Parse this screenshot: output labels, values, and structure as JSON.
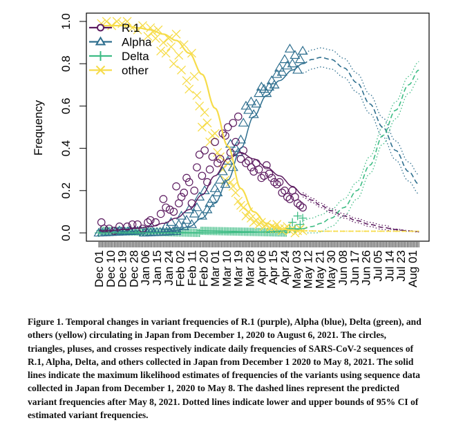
{
  "chart_data": {
    "type": "line",
    "title": "",
    "xlabel": "",
    "ylabel": "Frequency",
    "ylim": [
      0,
      1
    ],
    "y_ticks": [
      "0.0",
      "0.2",
      "0.4",
      "0.6",
      "0.8",
      "1.0"
    ],
    "x_start_date": "Dec 01 2020",
    "x_end_date": "Aug 06 2021",
    "x_days_range": [
      0,
      248
    ],
    "x_ticks": [
      {
        "label": "Dec 01",
        "day": 0
      },
      {
        "label": "Dec 10",
        "day": 9
      },
      {
        "label": "Dec 19",
        "day": 18
      },
      {
        "label": "Dec 28",
        "day": 27
      },
      {
        "label": "Jan 06",
        "day": 36
      },
      {
        "label": "Jan 15",
        "day": 45
      },
      {
        "label": "Jan 24",
        "day": 54
      },
      {
        "label": "Feb 02",
        "day": 63
      },
      {
        "label": "Feb 11",
        "day": 72
      },
      {
        "label": "Feb 20",
        "day": 81
      },
      {
        "label": "Mar 01",
        "day": 90
      },
      {
        "label": "Mar 10",
        "day": 99
      },
      {
        "label": "Mar 19",
        "day": 108
      },
      {
        "label": "Mar 28",
        "day": 117
      },
      {
        "label": "Apr 06",
        "day": 126
      },
      {
        "label": "Apr 15",
        "day": 135
      },
      {
        "label": "Apr 24",
        "day": 144
      },
      {
        "label": "May 03",
        "day": 153
      },
      {
        "label": "May 12",
        "day": 162
      },
      {
        "label": "May 21",
        "day": 171
      },
      {
        "label": "May 30",
        "day": 180
      },
      {
        "label": "Jun 08",
        "day": 189
      },
      {
        "label": "Jun 17",
        "day": 198
      },
      {
        "label": "Jun 26",
        "day": 207
      },
      {
        "label": "Jul 05",
        "day": 216
      },
      {
        "label": "Jul 14",
        "day": 225
      },
      {
        "label": "Jul 23",
        "day": 234
      },
      {
        "label": "Aug 01",
        "day": 243
      }
    ],
    "observed_until_day": 158,
    "legend": {
      "placement": "top-left",
      "entries": [
        {
          "name": "R.1",
          "marker": "circle",
          "color": "#5b1a5f"
        },
        {
          "name": "Alpha",
          "marker": "triangle",
          "color": "#2d6e8e"
        },
        {
          "name": "Delta",
          "marker": "plus",
          "color": "#3dbc84"
        },
        {
          "name": "other",
          "marker": "cross",
          "color": "#f6dc4a"
        }
      ]
    },
    "model_days": [
      0,
      10,
      20,
      30,
      40,
      50,
      60,
      70,
      80,
      90,
      100,
      110,
      120,
      130,
      140,
      150,
      158,
      165,
      172,
      180,
      190,
      200,
      210,
      220,
      230,
      240,
      248
    ],
    "series": [
      {
        "name": "R.1",
        "color": "#5b1a5f",
        "estimate": [
          0.01,
          0.012,
          0.016,
          0.022,
          0.03,
          0.045,
          0.07,
          0.11,
          0.18,
          0.27,
          0.35,
          0.38,
          0.35,
          0.31,
          0.27,
          0.22,
          0.18,
          0.155,
          0.13,
          0.105,
          0.08,
          0.058,
          0.04,
          0.026,
          0.016,
          0.009,
          0.006
        ],
        "ci_halfwidth": 0.01,
        "observed": [
          [
            2,
            0.05
          ],
          [
            4,
            0.02
          ],
          [
            8,
            0.02
          ],
          [
            12,
            0.01
          ],
          [
            16,
            0.03
          ],
          [
            22,
            0.03
          ],
          [
            26,
            0.04
          ],
          [
            30,
            0.04
          ],
          [
            34,
            0.02
          ],
          [
            38,
            0.05
          ],
          [
            40,
            0.06
          ],
          [
            44,
            0.05
          ],
          [
            48,
            0.09
          ],
          [
            50,
            0.16
          ],
          [
            52,
            0.12
          ],
          [
            55,
            0.11
          ],
          [
            58,
            0.1
          ],
          [
            60,
            0.22
          ],
          [
            62,
            0.14
          ],
          [
            64,
            0.17
          ],
          [
            66,
            0.19
          ],
          [
            68,
            0.26
          ],
          [
            70,
            0.24
          ],
          [
            72,
            0.14
          ],
          [
            74,
            0.2
          ],
          [
            76,
            0.31
          ],
          [
            78,
            0.37
          ],
          [
            80,
            0.27
          ],
          [
            82,
            0.39
          ],
          [
            84,
            0.24
          ],
          [
            86,
            0.3
          ],
          [
            88,
            0.36
          ],
          [
            90,
            0.43
          ],
          [
            92,
            0.33
          ],
          [
            94,
            0.35
          ],
          [
            96,
            0.47
          ],
          [
            98,
            0.46
          ],
          [
            100,
            0.5
          ],
          [
            102,
            0.38
          ],
          [
            104,
            0.52
          ],
          [
            106,
            0.43
          ],
          [
            108,
            0.55
          ],
          [
            110,
            0.35
          ],
          [
            112,
            0.39
          ],
          [
            114,
            0.33
          ],
          [
            116,
            0.34
          ],
          [
            118,
            0.31
          ],
          [
            120,
            0.29
          ],
          [
            122,
            0.33
          ],
          [
            124,
            0.3
          ],
          [
            126,
            0.26
          ],
          [
            128,
            0.27
          ],
          [
            130,
            0.32
          ],
          [
            132,
            0.28
          ],
          [
            134,
            0.26
          ],
          [
            136,
            0.24
          ],
          [
            138,
            0.23
          ],
          [
            140,
            0.24
          ],
          [
            142,
            0.19
          ],
          [
            144,
            0.2
          ],
          [
            146,
            0.17
          ],
          [
            148,
            0.16
          ],
          [
            150,
            0.2
          ],
          [
            152,
            0.17
          ],
          [
            154,
            0.14
          ],
          [
            156,
            0.13
          ],
          [
            158,
            0.12
          ]
        ]
      },
      {
        "name": "Alpha",
        "color": "#2d6e8e",
        "estimate": [
          0.0,
          0.0,
          0.0,
          0.001,
          0.002,
          0.005,
          0.012,
          0.03,
          0.07,
          0.14,
          0.25,
          0.4,
          0.55,
          0.65,
          0.72,
          0.77,
          0.8,
          0.82,
          0.83,
          0.82,
          0.78,
          0.71,
          0.61,
          0.5,
          0.39,
          0.29,
          0.23
        ],
        "ci_halfwidth": 0.045,
        "observed": [
          [
            16,
            0.01
          ],
          [
            24,
            0.01
          ],
          [
            40,
            0.02
          ],
          [
            52,
            0.03
          ],
          [
            56,
            0.05
          ],
          [
            60,
            0.02
          ],
          [
            62,
            0.04
          ],
          [
            64,
            0.08
          ],
          [
            66,
            0.03
          ],
          [
            68,
            0.06
          ],
          [
            70,
            0.11
          ],
          [
            72,
            0.04
          ],
          [
            74,
            0.09
          ],
          [
            76,
            0.12
          ],
          [
            78,
            0.17
          ],
          [
            80,
            0.08
          ],
          [
            82,
            0.2
          ],
          [
            84,
            0.11
          ],
          [
            86,
            0.14
          ],
          [
            88,
            0.16
          ],
          [
            90,
            0.21
          ],
          [
            92,
            0.19
          ],
          [
            94,
            0.25
          ],
          [
            96,
            0.29
          ],
          [
            98,
            0.23
          ],
          [
            100,
            0.34
          ],
          [
            102,
            0.42
          ],
          [
            104,
            0.31
          ],
          [
            106,
            0.4
          ],
          [
            108,
            0.38
          ],
          [
            110,
            0.44
          ],
          [
            112,
            0.52
          ],
          [
            114,
            0.6
          ],
          [
            116,
            0.58
          ],
          [
            118,
            0.62
          ],
          [
            120,
            0.56
          ],
          [
            122,
            0.61
          ],
          [
            124,
            0.66
          ],
          [
            126,
            0.69
          ],
          [
            128,
            0.68
          ],
          [
            130,
            0.66
          ],
          [
            132,
            0.69
          ],
          [
            134,
            0.72
          ],
          [
            136,
            0.7
          ],
          [
            138,
            0.75
          ],
          [
            140,
            0.78
          ],
          [
            142,
            0.76
          ],
          [
            144,
            0.82
          ],
          [
            146,
            0.79
          ],
          [
            148,
            0.87
          ],
          [
            150,
            0.8
          ],
          [
            152,
            0.84
          ],
          [
            154,
            0.77
          ],
          [
            156,
            0.82
          ],
          [
            158,
            0.86
          ]
        ]
      },
      {
        "name": "Delta",
        "color": "#3dbc84",
        "estimate": [
          0.0,
          0.0,
          0.0,
          0.0,
          0.0,
          0.0,
          0.0,
          0.0,
          0.0,
          0.0,
          0.001,
          0.002,
          0.003,
          0.005,
          0.008,
          0.013,
          0.02,
          0.03,
          0.045,
          0.07,
          0.12,
          0.2,
          0.32,
          0.46,
          0.58,
          0.7,
          0.77
        ],
        "ci_halfwidth": 0.04,
        "observed": [
          [
            148,
            0.02
          ],
          [
            150,
            0.05
          ],
          [
            152,
            0.02
          ],
          [
            154,
            0.08
          ],
          [
            156,
            0.04
          ],
          [
            158,
            0.07
          ]
        ]
      },
      {
        "name": "other",
        "color": "#f6dc4a",
        "estimate": [
          0.98,
          0.98,
          0.98,
          0.97,
          0.96,
          0.94,
          0.91,
          0.85,
          0.75,
          0.59,
          0.41,
          0.21,
          0.1,
          0.045,
          0.02,
          0.012,
          0.01,
          0.009,
          0.008,
          0.008,
          0.008,
          0.008,
          0.008,
          0.008,
          0.008,
          0.008,
          0.008
        ],
        "ci_halfwidth": 0.008,
        "observed": [
          [
            2,
            0.99
          ],
          [
            6,
            1.0
          ],
          [
            10,
            0.98
          ],
          [
            14,
            1.0
          ],
          [
            18,
            0.99
          ],
          [
            22,
            1.0
          ],
          [
            26,
            0.97
          ],
          [
            30,
            0.96
          ],
          [
            34,
            0.98
          ],
          [
            38,
            0.93
          ],
          [
            40,
            0.97
          ],
          [
            42,
            0.95
          ],
          [
            44,
            0.92
          ],
          [
            46,
            0.96
          ],
          [
            48,
            0.86
          ],
          [
            50,
            0.9
          ],
          [
            52,
            0.85
          ],
          [
            54,
            0.92
          ],
          [
            56,
            0.88
          ],
          [
            58,
            0.8
          ],
          [
            60,
            0.94
          ],
          [
            62,
            0.84
          ],
          [
            64,
            0.77
          ],
          [
            66,
            0.89
          ],
          [
            68,
            0.72
          ],
          [
            70,
            0.68
          ],
          [
            72,
            0.85
          ],
          [
            74,
            0.74
          ],
          [
            76,
            0.65
          ],
          [
            78,
            0.6
          ],
          [
            80,
            0.5
          ],
          [
            82,
            0.57
          ],
          [
            84,
            0.52
          ],
          [
            86,
            0.43
          ],
          [
            88,
            0.46
          ],
          [
            90,
            0.47
          ],
          [
            92,
            0.38
          ],
          [
            94,
            0.36
          ],
          [
            96,
            0.3
          ],
          [
            98,
            0.25
          ],
          [
            100,
            0.33
          ],
          [
            102,
            0.24
          ],
          [
            104,
            0.22
          ],
          [
            106,
            0.19
          ],
          [
            108,
            0.15
          ],
          [
            110,
            0.13
          ],
          [
            112,
            0.12
          ],
          [
            114,
            0.08
          ],
          [
            116,
            0.1
          ],
          [
            118,
            0.07
          ],
          [
            120,
            0.05
          ],
          [
            122,
            0.06
          ],
          [
            124,
            0.04
          ],
          [
            126,
            0.05
          ],
          [
            128,
            0.03
          ],
          [
            130,
            0.04
          ],
          [
            132,
            0.02
          ],
          [
            134,
            0.03
          ],
          [
            136,
            0.02
          ],
          [
            138,
            0.04
          ],
          [
            140,
            0.02
          ],
          [
            142,
            0.01
          ],
          [
            144,
            0.02
          ],
          [
            146,
            0.03
          ],
          [
            148,
            0.01
          ],
          [
            150,
            0.02
          ],
          [
            152,
            0.0
          ],
          [
            154,
            0.01
          ],
          [
            156,
            0.02
          ],
          [
            158,
            0.01
          ]
        ]
      }
    ],
    "line_styles": {
      "estimate": "solid",
      "prediction": "dashed",
      "ci_bounds": "dotted"
    }
  },
  "caption": {
    "lines": [
      "Figure 1. Temporal changes in variant frequencies of R.1 (purple), Alpha (blue), Delta (green), and",
      "others (yellow) circulating in Japan from December 1, 2020 to August 6, 2021. The circles,",
      "triangles, pluses, and crosses respectively indicate daily frequencies of SARS-CoV-2 sequences of",
      "R.1, Alpha, Delta, and others collected in Japan from December 1 2020 to May 8, 2021. The solid",
      "lines indicate the maximum likelihood estimates of frequencies of the variants using sequence data",
      "collected in Japan from December 1, 2020 to May 8. The dashed lines represent the predicted",
      "variant frequencies after May 8, 2021. Dotted lines indicate lower and upper bounds of 95% CI of",
      "estimated variant frequencies."
    ]
  }
}
